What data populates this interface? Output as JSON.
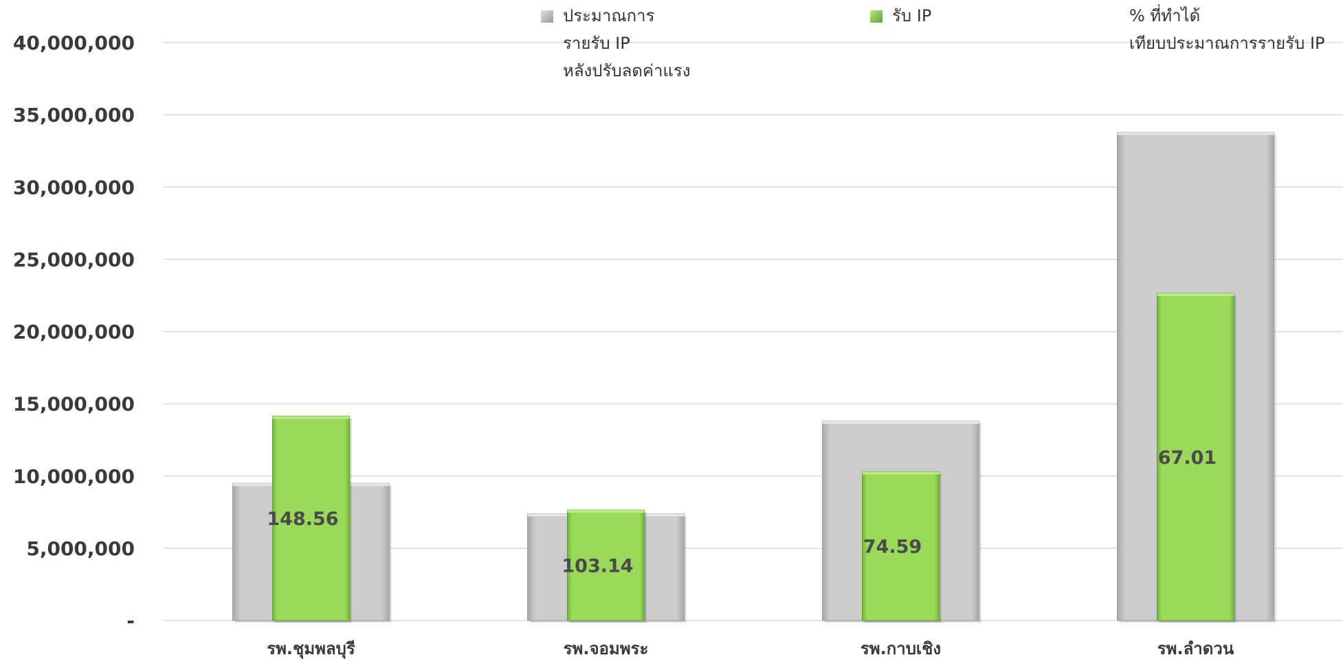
{
  "chart_data": {
    "type": "bar",
    "categories": [
      "รพ.ชุมพลบุรี",
      "รพ.จอมพระ",
      "รพ.กาบเชิง",
      "รพ.ลำดวน"
    ],
    "series": [
      {
        "name": "ประมาณการ รายรับ IP หลังปรับลดค่าแรง",
        "values": [
          9500000,
          7400000,
          13800000,
          33800000
        ],
        "color": "#c8c8c8"
      },
      {
        "name": "รับ IP",
        "values": [
          14150000,
          7650000,
          10300000,
          22650000
        ],
        "color": "#92d050"
      }
    ],
    "ratio_label": "% ที่ทำได้ เทียบประมาณการรายรับ IP",
    "ratio_values": [
      "148.56",
      "103.14",
      "74.59",
      "67.01"
    ],
    "ylim": [
      0,
      40000000
    ],
    "y_ticks": [
      {
        "value": 0,
        "label": "-"
      },
      {
        "value": 5000000,
        "label": "5,000,000"
      },
      {
        "value": 10000000,
        "label": "10,000,000"
      },
      {
        "value": 15000000,
        "label": "15,000,000"
      },
      {
        "value": 20000000,
        "label": "20,000,000"
      },
      {
        "value": 25000000,
        "label": "25,000,000"
      },
      {
        "value": 30000000,
        "label": "30,000,000"
      },
      {
        "value": 35000000,
        "label": "35,000,000"
      },
      {
        "value": 40000000,
        "label": "40,000,000"
      }
    ],
    "grid": true,
    "legend_position": "top"
  },
  "legend": {
    "items": [
      {
        "label": "ประมาณการ\nรายรับ IP\nหลังปรับลดค่าแรง",
        "swatch": "#bdbdbd"
      },
      {
        "label": "รับ IP",
        "swatch": "#92d050"
      },
      {
        "label": "% ที่ทำได้\nเทียบประมาณการรายรับ IP",
        "swatch": ""
      }
    ]
  }
}
